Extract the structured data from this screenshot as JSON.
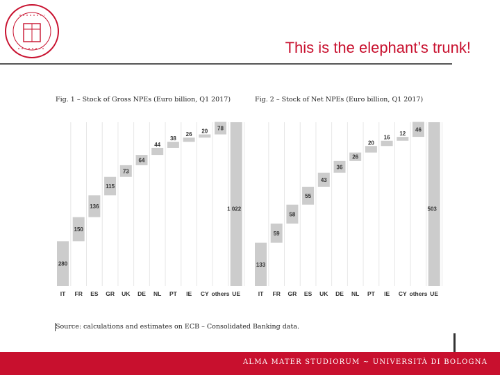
{
  "header": {
    "title": "This is the elephant’s trunk!",
    "logo_icon": "university-seal-icon"
  },
  "footer": {
    "text": "ALMA MATER STUDIORUM ~ UNIVERSITÀ DI BOLOGNA",
    "color": "#c8102e"
  },
  "source": "Source: calculations and estimates on ECB – Consolidated Banking data.",
  "chart_data": [
    {
      "type": "bar",
      "subtype": "waterfall",
      "title": "Fig. 1 – Stock of Gross NPEs (Euro billion, Q1 2017)",
      "categories": [
        "IT",
        "FR",
        "ES",
        "GR",
        "UK",
        "DE",
        "NL",
        "PT",
        "IE",
        "CY",
        "others",
        "UE"
      ],
      "values": [
        280,
        150,
        136,
        115,
        73,
        64,
        44,
        38,
        26,
        20,
        78,
        1022
      ],
      "labels": [
        "280",
        "150",
        "136",
        "115",
        "73",
        "64",
        "44",
        "38",
        "26",
        "20",
        "78",
        "1 022"
      ],
      "total_category": "UE",
      "ylim": [
        0,
        1022
      ],
      "grid": true
    },
    {
      "type": "bar",
      "subtype": "waterfall",
      "title": "Fig. 2 – Stock of Net NPEs (Euro billion, Q1 2017)",
      "categories": [
        "IT",
        "FR",
        "GR",
        "ES",
        "UK",
        "DE",
        "NL",
        "PT",
        "IE",
        "CY",
        "others",
        "UE"
      ],
      "values": [
        133,
        59,
        58,
        55,
        43,
        36,
        26,
        20,
        16,
        12,
        46,
        503
      ],
      "labels": [
        "133",
        "59",
        "58",
        "55",
        "43",
        "36",
        "26",
        "20",
        "16",
        "12",
        "46",
        "503"
      ],
      "total_category": "UE",
      "ylim": [
        0,
        503
      ],
      "grid": true
    }
  ]
}
